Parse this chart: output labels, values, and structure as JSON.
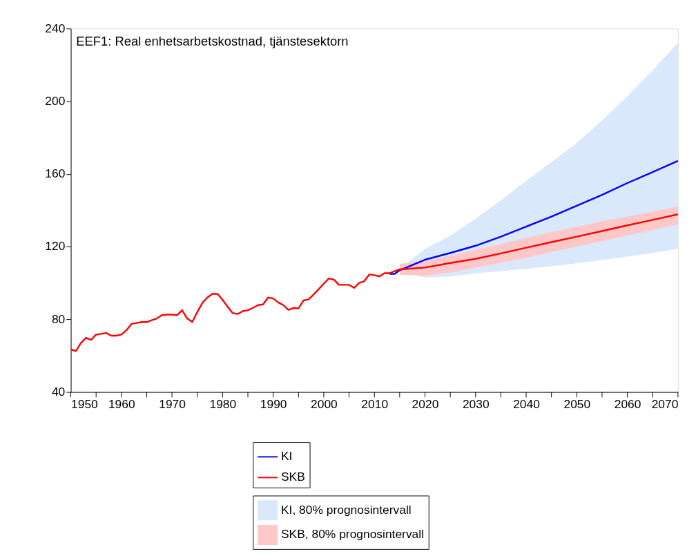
{
  "chart_data": {
    "type": "line",
    "title": "EEF1: Real enhetsarbetskostnad, tjänstesektorn",
    "x": [
      1950,
      1951,
      1952,
      1953,
      1954,
      1955,
      1956,
      1957,
      1958,
      1959,
      1960,
      1961,
      1962,
      1963,
      1964,
      1965,
      1966,
      1967,
      1968,
      1969,
      1970,
      1971,
      1972,
      1973,
      1974,
      1975,
      1976,
      1977,
      1978,
      1979,
      1980,
      1981,
      1982,
      1983,
      1984,
      1985,
      1986,
      1987,
      1988,
      1989,
      1990,
      1991,
      1992,
      1993,
      1994,
      1995,
      1996,
      1997,
      1998,
      1999,
      2000,
      2001,
      2002,
      2003,
      2004,
      2005,
      2006,
      2007,
      2008,
      2009,
      2010,
      2011,
      2012,
      2013,
      2014,
      2015,
      2020,
      2025,
      2030,
      2035,
      2040,
      2045,
      2050,
      2055,
      2060,
      2065,
      2070
    ],
    "series": [
      {
        "name": "KI",
        "color": "#0000ff",
        "values": [
          null,
          null,
          null,
          null,
          null,
          null,
          null,
          null,
          null,
          null,
          null,
          null,
          null,
          null,
          null,
          null,
          null,
          null,
          null,
          null,
          null,
          null,
          null,
          null,
          null,
          null,
          null,
          null,
          null,
          null,
          null,
          null,
          null,
          null,
          null,
          null,
          null,
          null,
          null,
          null,
          null,
          null,
          null,
          null,
          null,
          null,
          null,
          null,
          null,
          null,
          null,
          null,
          null,
          null,
          null,
          null,
          null,
          null,
          null,
          null,
          null,
          null,
          null,
          105,
          105,
          107,
          112.8,
          116.5,
          120.5,
          125.5,
          131,
          136.5,
          142.5,
          148.5,
          155,
          161,
          167.2
        ]
      },
      {
        "name": "SKB",
        "color": "#ff0000",
        "values": [
          63.5,
          62.5,
          67,
          69.8,
          68.7,
          71.6,
          72,
          72.5,
          71,
          71,
          71.6,
          74,
          77.5,
          78,
          78.5,
          78.5,
          79.5,
          80.5,
          82.3,
          82.6,
          82.6,
          82.3,
          85,
          80.5,
          78.5,
          84,
          89,
          92,
          94,
          94,
          90.7,
          87,
          83.4,
          83,
          84.5,
          85,
          86.3,
          87.8,
          88.2,
          92,
          91.5,
          89.3,
          87.8,
          85.2,
          86.3,
          86,
          90.4,
          91,
          93.7,
          96.6,
          99.6,
          102.5,
          101.8,
          99,
          99,
          99,
          97.3,
          100,
          101,
          104.7,
          104.3,
          103.6,
          105.4,
          105.4,
          106.5,
          107.5,
          108.5,
          111,
          113.3,
          116.3,
          119.4,
          122.5,
          125.5,
          128.6,
          131.7,
          134.7,
          137.8
        ]
      },
      {
        "name": "KI, 80% prognosintervall",
        "type": "area",
        "color": "#dae8fc",
        "x": [
          2015,
          2020,
          2025,
          2030,
          2035,
          2040,
          2045,
          2050,
          2055,
          2060,
          2065,
          2070
        ],
        "values": [
          null,
          null,
          null,
          null,
          null,
          null,
          null,
          null,
          null,
          null,
          null,
          null
        ],
        "lower": [
          106,
          103,
          103.6,
          105.3,
          106.5,
          107.8,
          109.2,
          110.8,
          112.6,
          114.5,
          116.5,
          118.8
        ],
        "upper": [
          108,
          118.7,
          126,
          135.3,
          145.5,
          156.2,
          166.5,
          177,
          189.5,
          202.8,
          217,
          232.2
        ]
      },
      {
        "name": "SKB, 80% prognosintervall",
        "type": "area",
        "color": "#ffc8c8",
        "x": [
          2015,
          2020,
          2025,
          2030,
          2035,
          2040,
          2045,
          2050,
          2055,
          2060,
          2065,
          2070
        ],
        "values": [
          null,
          null,
          null,
          null,
          null,
          null,
          null,
          null,
          null,
          null,
          null,
          null
        ],
        "lower": [
          104.5,
          104,
          105.8,
          108.4,
          111.2,
          113.9,
          117,
          120,
          123,
          126.1,
          129.2,
          132.3
        ],
        "upper": [
          110.5,
          112,
          115,
          118.2,
          121.5,
          124.9,
          128,
          131,
          134,
          136.6,
          139.3,
          142.1
        ]
      }
    ],
    "xlim": [
      1950,
      2070
    ],
    "xticks": [
      1950,
      {
        "value": 1955,
        "label": null
      },
      1960,
      {
        "value": 1965,
        "label": null
      },
      1970,
      {
        "value": 1975,
        "label": null
      },
      1980,
      {
        "value": 1985,
        "label": null
      },
      1990,
      {
        "value": 1995,
        "label": null
      },
      2000,
      {
        "value": 2005,
        "label": null
      },
      2010,
      {
        "value": 2015,
        "label": null
      },
      2020,
      {
        "value": 2025,
        "label": null
      },
      2030,
      {
        "value": 2035,
        "label": null
      },
      2040,
      {
        "value": 2045,
        "label": null
      },
      2050,
      {
        "value": 2055,
        "label": null
      },
      2060,
      {
        "value": 2065,
        "label": null
      },
      2070
    ],
    "ylim": [
      40,
      240
    ],
    "yticks": [
      40,
      80,
      120,
      160,
      200,
      240
    ],
    "grid": false,
    "legend": "bottom"
  }
}
